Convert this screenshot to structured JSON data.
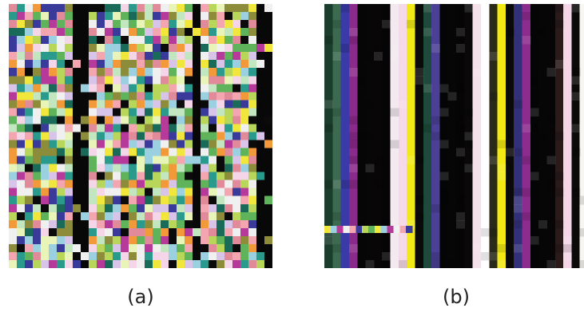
{
  "figure": {
    "panels": [
      {
        "caption": "(a)",
        "palette": [
          "#0b0b0b",
          "#f5d6e8",
          "#e9f5b8",
          "#f4a6b0",
          "#c2e6c0",
          "#2a9a8c",
          "#b53a9a",
          "#f0f0f0",
          "#9ad0df",
          "#f1e73c",
          "#5fb35a",
          "#e08a9a",
          "#3a3a9a",
          "#d8c4e8",
          "#8c8c3a",
          "#f29a3a",
          "#b8d65a",
          "#1a6a5a"
        ],
        "dark_columns": [
          8,
          9,
          23,
          31,
          32
        ]
      },
      {
        "caption": "(b)",
        "stripe_colors": [
          "#1b3d2d",
          "#3b6a4f",
          "#3a3aa8",
          "#8a2a8a",
          "#060606",
          "#070707",
          "#080606",
          "#050505",
          "#f3e9ee",
          "#f6d9e8",
          "#f1ea18",
          "#0a0a0a",
          "#1d4a3a",
          "#4b3f96",
          "#050505",
          "#060606",
          "#050505",
          "#0a0808",
          "#f5e1ea",
          "#ffffff",
          "#2a2a1a",
          "#f2ea12",
          "#0a0a0a",
          "#33307a",
          "#8c2c8e",
          "#050505",
          "#060606",
          "#070505",
          "#2a1a1a",
          "#f4d6e6",
          "#0a0a0a",
          "#f8f6f0"
        ],
        "band_colors": [
          "#f1e73c",
          "#9ad0df",
          "#b53a9a",
          "#f0f0f0",
          "#f4a6b0",
          "#3a3a9a",
          "#b8d65a",
          "#5fb35a"
        ]
      }
    ]
  }
}
